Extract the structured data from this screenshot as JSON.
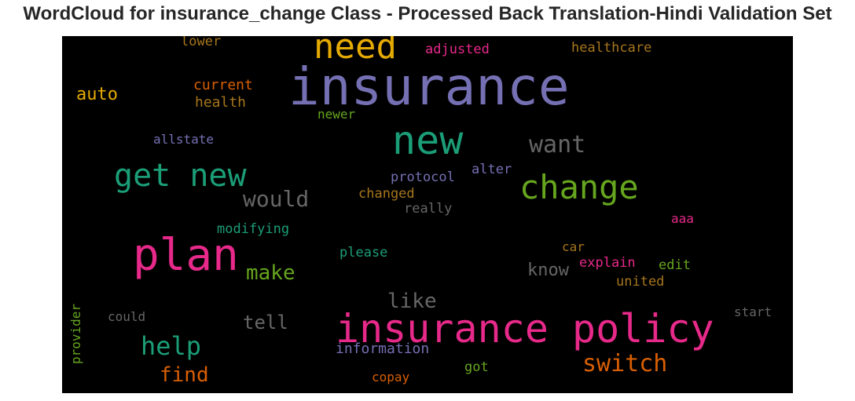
{
  "title": "WordCloud for insurance_change Class - Processed Back Translation-Hindi Validation Set",
  "colors": {
    "purple": "#7570b3",
    "teal": "#1b9e77",
    "pink": "#e7298a",
    "green": "#66a61e",
    "gold": "#e6ab02",
    "orange": "#d95f02",
    "brown": "#a6761d",
    "gray": "#666666"
  },
  "words": [
    {
      "text": "insurance",
      "color": "purple"
    },
    {
      "text": "insurance policy",
      "color": "pink"
    },
    {
      "text": "plan",
      "color": "pink"
    },
    {
      "text": "new",
      "color": "teal"
    },
    {
      "text": "need",
      "color": "gold"
    },
    {
      "text": "change",
      "color": "green"
    },
    {
      "text": "get new",
      "color": "teal"
    },
    {
      "text": "want",
      "color": "gray"
    },
    {
      "text": "switch",
      "color": "orange"
    },
    {
      "text": "help",
      "color": "teal"
    },
    {
      "text": "would",
      "color": "gray"
    },
    {
      "text": "make",
      "color": "green"
    },
    {
      "text": "like",
      "color": "gray"
    },
    {
      "text": "find",
      "color": "orange"
    },
    {
      "text": "tell",
      "color": "gray"
    },
    {
      "text": "know",
      "color": "gray"
    },
    {
      "text": "auto",
      "color": "gold"
    },
    {
      "text": "information",
      "color": "purple"
    },
    {
      "text": "current",
      "color": "orange"
    },
    {
      "text": "health",
      "color": "brown"
    },
    {
      "text": "healthcare",
      "color": "brown"
    },
    {
      "text": "adjusted",
      "color": "pink"
    },
    {
      "text": "lower",
      "color": "brown"
    },
    {
      "text": "newer",
      "color": "green"
    },
    {
      "text": "allstate",
      "color": "purple"
    },
    {
      "text": "protocol",
      "color": "purple"
    },
    {
      "text": "alter",
      "color": "purple"
    },
    {
      "text": "changed",
      "color": "brown"
    },
    {
      "text": "really",
      "color": "gray"
    },
    {
      "text": "modifying",
      "color": "teal"
    },
    {
      "text": "please",
      "color": "teal"
    },
    {
      "text": "car",
      "color": "brown"
    },
    {
      "text": "explain",
      "color": "pink"
    },
    {
      "text": "edit",
      "color": "green"
    },
    {
      "text": "united",
      "color": "brown"
    },
    {
      "text": "aaa",
      "color": "pink"
    },
    {
      "text": "start",
      "color": "gray"
    },
    {
      "text": "could",
      "color": "gray"
    },
    {
      "text": "got",
      "color": "green"
    },
    {
      "text": "copay",
      "color": "orange"
    },
    {
      "text": "provider",
      "color": "green"
    }
  ]
}
